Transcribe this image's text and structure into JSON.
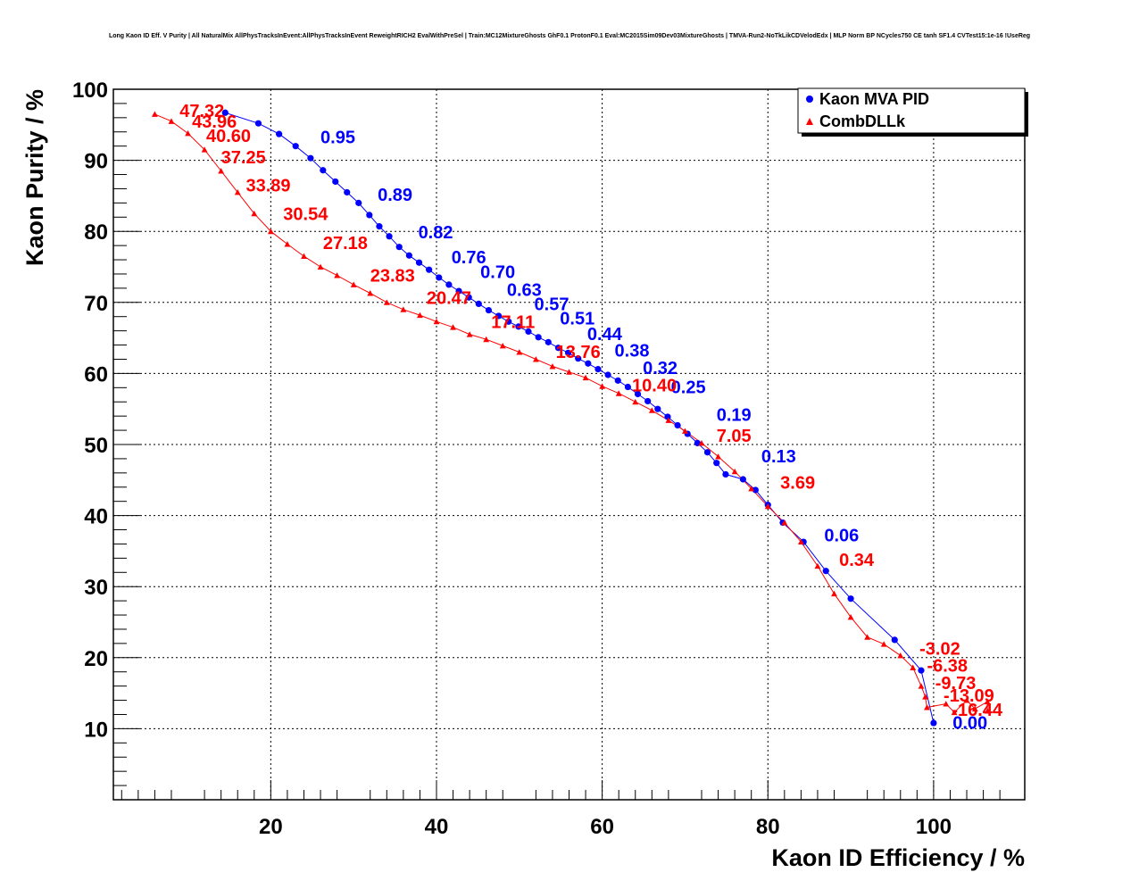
{
  "chart_data": {
    "type": "scatter",
    "title": "Long Kaon ID Eff. V Purity | All NaturalMix AllPhysTracksInEvent:AllPhysTracksInEvent ReweightRICH2 EvalWithPreSel | Train:MC12MixtureGhosts GhF0.1 ProtonF0.1 Eval:MC2015Sim09Dev03MixtureGhosts | TMVA-Run2-NoTkLikCDVelodEdx | MLP Norm BP NCycles750 CE tanh SF1.4 CVTest15:1e-16 !UseReg",
    "xlabel": "Kaon ID Efficiency / %",
    "ylabel": "Kaon Purity / %",
    "xlim": [
      1,
      111
    ],
    "ylim": [
      0,
      100
    ],
    "xticks": [
      20,
      40,
      60,
      80,
      100
    ],
    "yticks": [
      10,
      20,
      30,
      40,
      50,
      60,
      70,
      80,
      90,
      100
    ],
    "grid": true,
    "legend_position": "top-right",
    "series": [
      {
        "name": "Kaon MVA PID",
        "color": "#0000ff",
        "marker": "circle",
        "points": [
          [
            14.5,
            96.7
          ],
          [
            18.5,
            95.2
          ],
          [
            21.0,
            93.7
          ],
          [
            23.0,
            92.0
          ],
          [
            24.8,
            90.3
          ],
          [
            26.3,
            88.6
          ],
          [
            27.8,
            87.0
          ],
          [
            29.2,
            85.5
          ],
          [
            30.6,
            84.0
          ],
          [
            31.9,
            82.3
          ],
          [
            33.1,
            80.7
          ],
          [
            34.3,
            79.3
          ],
          [
            35.5,
            77.8
          ],
          [
            36.7,
            76.6
          ],
          [
            37.9,
            75.6
          ],
          [
            39.1,
            74.6
          ],
          [
            40.3,
            73.5
          ],
          [
            41.5,
            72.5
          ],
          [
            42.7,
            71.6
          ],
          [
            43.9,
            70.7
          ],
          [
            45.1,
            69.8
          ],
          [
            46.3,
            68.9
          ],
          [
            47.5,
            68.1
          ],
          [
            48.7,
            67.3
          ],
          [
            49.9,
            66.6
          ],
          [
            51.1,
            65.9
          ],
          [
            52.3,
            65.1
          ],
          [
            53.5,
            64.4
          ],
          [
            54.7,
            63.6
          ],
          [
            55.9,
            62.9
          ],
          [
            57.1,
            62.1
          ],
          [
            58.3,
            61.4
          ],
          [
            59.5,
            60.6
          ],
          [
            60.7,
            59.8
          ],
          [
            61.9,
            59.0
          ],
          [
            63.1,
            58.1
          ],
          [
            64.3,
            57.1
          ],
          [
            65.5,
            56.1
          ],
          [
            66.7,
            55.0
          ],
          [
            67.9,
            53.9
          ],
          [
            69.1,
            52.7
          ],
          [
            70.3,
            51.5
          ],
          [
            71.5,
            50.2
          ],
          [
            72.7,
            48.9
          ],
          [
            73.8,
            47.4
          ],
          [
            74.9,
            45.8
          ],
          [
            77.0,
            45.1
          ],
          [
            78.5,
            43.6
          ],
          [
            80.0,
            41.5
          ],
          [
            81.8,
            39.0
          ],
          [
            84.3,
            36.3
          ],
          [
            87.0,
            32.2
          ],
          [
            90.0,
            28.3
          ],
          [
            95.3,
            22.5
          ],
          [
            98.5,
            18.2
          ],
          [
            100.0,
            10.8
          ]
        ]
      },
      {
        "name": "CombDLLk",
        "color": "#ff0000",
        "marker": "triangle",
        "points": [
          [
            6.0,
            96.5
          ],
          [
            8.0,
            95.5
          ],
          [
            10.0,
            93.8
          ],
          [
            12.0,
            91.5
          ],
          [
            14.0,
            88.5
          ],
          [
            16.0,
            85.5
          ],
          [
            18.0,
            82.5
          ],
          [
            20.0,
            80.0
          ],
          [
            22.0,
            78.2
          ],
          [
            24.0,
            76.5
          ],
          [
            26.0,
            75.0
          ],
          [
            28.0,
            73.8
          ],
          [
            30.0,
            72.5
          ],
          [
            32.0,
            71.3
          ],
          [
            34.0,
            70.0
          ],
          [
            36.0,
            69.0
          ],
          [
            38.0,
            68.2
          ],
          [
            40.0,
            67.3
          ],
          [
            42.0,
            66.5
          ],
          [
            44.0,
            65.5
          ],
          [
            46.0,
            64.8
          ],
          [
            48.0,
            63.9
          ],
          [
            50.0,
            63.0
          ],
          [
            52.0,
            62.0
          ],
          [
            54.0,
            61.0
          ],
          [
            56.0,
            60.2
          ],
          [
            58.0,
            59.4
          ],
          [
            60.0,
            58.2
          ],
          [
            62.0,
            57.2
          ],
          [
            64.0,
            56.0
          ],
          [
            66.0,
            54.8
          ],
          [
            68.0,
            53.4
          ],
          [
            70.0,
            51.9
          ],
          [
            72.0,
            50.2
          ],
          [
            74.0,
            48.3
          ],
          [
            76.0,
            46.2
          ],
          [
            78.0,
            43.8
          ],
          [
            80.0,
            41.3
          ],
          [
            82.0,
            39.0
          ],
          [
            84.0,
            36.3
          ],
          [
            86.0,
            32.9
          ],
          [
            88.0,
            29.0
          ],
          [
            90.0,
            25.7
          ],
          [
            92.0,
            22.9
          ],
          [
            94.0,
            21.9
          ],
          [
            96.0,
            20.3
          ],
          [
            97.5,
            18.6
          ],
          [
            98.5,
            16.0
          ],
          [
            99.0,
            14.5
          ],
          [
            99.2,
            13.0
          ],
          [
            101.5,
            13.5
          ],
          [
            102.5,
            12.3
          ],
          [
            104.0,
            14.0
          ],
          [
            105.0,
            12.8
          ],
          [
            106.5,
            13.8
          ],
          [
            106.5,
            12.5
          ]
        ]
      }
    ],
    "annotations": [
      {
        "series": "Kaon MVA PID",
        "text": "0.95",
        "x": 26.0,
        "y": 92.4
      },
      {
        "series": "Kaon MVA PID",
        "text": "0.89",
        "x": 32.9,
        "y": 84.3
      },
      {
        "series": "Kaon MVA PID",
        "text": "0.82",
        "x": 37.8,
        "y": 79.0
      },
      {
        "series": "Kaon MVA PID",
        "text": "0.76",
        "x": 41.8,
        "y": 75.5
      },
      {
        "series": "Kaon MVA PID",
        "text": "0.70",
        "x": 45.3,
        "y": 73.4
      },
      {
        "series": "Kaon MVA PID",
        "text": "0.63",
        "x": 48.5,
        "y": 70.9
      },
      {
        "series": "Kaon MVA PID",
        "text": "0.57",
        "x": 51.8,
        "y": 68.9
      },
      {
        "series": "Kaon MVA PID",
        "text": "0.51",
        "x": 54.9,
        "y": 66.9
      },
      {
        "series": "Kaon MVA PID",
        "text": "0.44",
        "x": 58.2,
        "y": 64.7
      },
      {
        "series": "Kaon MVA PID",
        "text": "0.38",
        "x": 61.5,
        "y": 62.4
      },
      {
        "series": "Kaon MVA PID",
        "text": "0.32",
        "x": 64.9,
        "y": 59.9
      },
      {
        "series": "Kaon MVA PID",
        "text": "0.25",
        "x": 68.3,
        "y": 57.2
      },
      {
        "series": "Kaon MVA PID",
        "text": "0.19",
        "x": 73.8,
        "y": 53.3
      },
      {
        "series": "Kaon MVA PID",
        "text": "0.13",
        "x": 79.2,
        "y": 47.5
      },
      {
        "series": "Kaon MVA PID",
        "text": "0.06",
        "x": 86.8,
        "y": 36.4
      },
      {
        "series": "Kaon MVA PID",
        "text": "0.00",
        "x": 102.3,
        "y": 10.0
      },
      {
        "series": "CombDLLk",
        "text": "47.32",
        "x": 9.0,
        "y": 96.1
      },
      {
        "series": "CombDLLk",
        "text": "43.96",
        "x": 10.5,
        "y": 94.6
      },
      {
        "series": "CombDLLk",
        "text": "40.60",
        "x": 12.2,
        "y": 92.6
      },
      {
        "series": "CombDLLk",
        "text": "37.25",
        "x": 14.0,
        "y": 89.6
      },
      {
        "series": "CombDLLk",
        "text": "33.89",
        "x": 17.0,
        "y": 85.6
      },
      {
        "series": "CombDLLk",
        "text": "30.54",
        "x": 21.5,
        "y": 81.6
      },
      {
        "series": "CombDLLk",
        "text": "27.18",
        "x": 26.3,
        "y": 77.5
      },
      {
        "series": "CombDLLk",
        "text": "23.83",
        "x": 32.0,
        "y": 72.9
      },
      {
        "series": "CombDLLk",
        "text": "20.47",
        "x": 38.8,
        "y": 69.8
      },
      {
        "series": "CombDLLk",
        "text": "17.11",
        "x": 46.6,
        "y": 66.4
      },
      {
        "series": "CombDLLk",
        "text": "13.76",
        "x": 54.4,
        "y": 62.2
      },
      {
        "series": "CombDLLk",
        "text": "10.40",
        "x": 63.6,
        "y": 57.5
      },
      {
        "series": "CombDLLk",
        "text": "7.05",
        "x": 73.8,
        "y": 50.4
      },
      {
        "series": "CombDLLk",
        "text": "3.69",
        "x": 81.5,
        "y": 43.8
      },
      {
        "series": "CombDLLk",
        "text": "0.34",
        "x": 88.6,
        "y": 32.9
      },
      {
        "series": "CombDLLk",
        "text": "-3.02",
        "x": 98.3,
        "y": 20.4
      },
      {
        "series": "CombDLLk",
        "text": "-6.38",
        "x": 99.2,
        "y": 18.0
      },
      {
        "series": "CombDLLk",
        "text": "-9.73",
        "x": 100.2,
        "y": 15.6
      },
      {
        "series": "CombDLLk",
        "text": "-13.09",
        "x": 101.2,
        "y": 13.8
      },
      {
        "series": "CombDLLk",
        "text": "-16.44",
        "x": 102.2,
        "y": 11.8
      }
    ]
  }
}
